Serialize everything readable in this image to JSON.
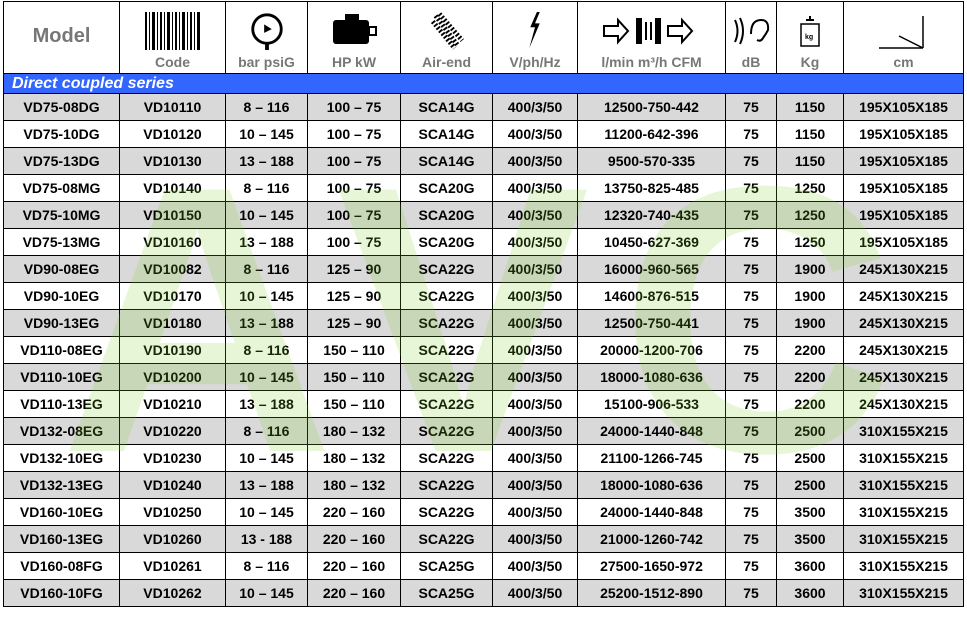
{
  "headers": {
    "model": "Model",
    "code": "Code",
    "pressure": "bar psiG",
    "power": "HP kW",
    "airend": "Air-end",
    "voltage": "V/ph/Hz",
    "flow": "l/min  m³/h  CFM",
    "noise": "dB",
    "weight": "Kg",
    "dims": "cm"
  },
  "icons": [
    "barcode-icon",
    "pressure-gauge-icon",
    "motor-icon",
    "air-end-icon",
    "lightning-icon",
    "airflow-icon",
    "ear-sound-icon",
    "weight-icon",
    "dimensions-axes-icon"
  ],
  "section": "Direct coupled series",
  "band_color": "#3366ff",
  "rows": [
    [
      "VD75-08DG",
      "VD10110",
      "8 – 116",
      "100 – 75",
      "SCA14G",
      "400/3/50",
      "12500-750-442",
      "75",
      "1150",
      "195X105X185"
    ],
    [
      "VD75-10DG",
      "VD10120",
      "10 – 145",
      "100 – 75",
      "SCA14G",
      "400/3/50",
      "11200-642-396",
      "75",
      "1150",
      "195X105X185"
    ],
    [
      "VD75-13DG",
      "VD10130",
      "13 – 188",
      "100 – 75",
      "SCA14G",
      "400/3/50",
      "9500-570-335",
      "75",
      "1150",
      "195X105X185"
    ],
    [
      "VD75-08MG",
      "VD10140",
      "8 – 116",
      "100 – 75",
      "SCA20G",
      "400/3/50",
      "13750-825-485",
      "75",
      "1250",
      "195X105X185"
    ],
    [
      "VD75-10MG",
      "VD10150",
      "10 – 145",
      "100 – 75",
      "SCA20G",
      "400/3/50",
      "12320-740-435",
      "75",
      "1250",
      "195X105X185"
    ],
    [
      "VD75-13MG",
      "VD10160",
      "13 – 188",
      "100 – 75",
      "SCA20G",
      "400/3/50",
      "10450-627-369",
      "75",
      "1250",
      "195X105X185"
    ],
    [
      "VD90-08EG",
      "VD10082",
      "8 – 116",
      "125 – 90",
      "SCA22G",
      "400/3/50",
      "16000-960-565",
      "75",
      "1900",
      "245X130X215"
    ],
    [
      "VD90-10EG",
      "VD10170",
      "10 – 145",
      "125 – 90",
      "SCA22G",
      "400/3/50",
      "14600-876-515",
      "75",
      "1900",
      "245X130X215"
    ],
    [
      "VD90-13EG",
      "VD10180",
      "13 – 188",
      "125 – 90",
      "SCA22G",
      "400/3/50",
      "12500-750-441",
      "75",
      "1900",
      "245X130X215"
    ],
    [
      "VD110-08EG",
      "VD10190",
      "8 – 116",
      "150 – 110",
      "SCA22G",
      "400/3/50",
      "20000-1200-706",
      "75",
      "2200",
      "245X130X215"
    ],
    [
      "VD110-10EG",
      "VD10200",
      "10 – 145",
      "150 – 110",
      "SCA22G",
      "400/3/50",
      "18000-1080-636",
      "75",
      "2200",
      "245X130X215"
    ],
    [
      "VD110-13EG",
      "VD10210",
      "13 – 188",
      "150 – 110",
      "SCA22G",
      "400/3/50",
      "15100-906-533",
      "75",
      "2200",
      "245X130X215"
    ],
    [
      "VD132-08EG",
      "VD10220",
      "8 – 116",
      "180 – 132",
      "SCA22G",
      "400/3/50",
      "24000-1440-848",
      "75",
      "2500",
      "310X155X215"
    ],
    [
      "VD132-10EG",
      "VD10230",
      "10 – 145",
      "180 – 132",
      "SCA22G",
      "400/3/50",
      "21100-1266-745",
      "75",
      "2500",
      "310X155X215"
    ],
    [
      "VD132-13EG",
      "VD10240",
      "13 – 188",
      "180 – 132",
      "SCA22G",
      "400/3/50",
      "18000-1080-636",
      "75",
      "2500",
      "310X155X215"
    ],
    [
      "VD160-10EG",
      "VD10250",
      "10 – 145",
      "220 – 160",
      "SCA22G",
      "400/3/50",
      "24000-1440-848",
      "75",
      "3500",
      "310X155X215"
    ],
    [
      "VD160-13EG",
      "VD10260",
      "13 - 188",
      "220 – 160",
      "SCA22G",
      "400/3/50",
      "21000-1260-742",
      "75",
      "3500",
      "310X155X215"
    ],
    [
      "VD160-08FG",
      "VD10261",
      "8 – 116",
      "220 – 160",
      "SCA25G",
      "400/3/50",
      "27500-1650-972",
      "75",
      "3600",
      "310X155X215"
    ],
    [
      "VD160-10FG",
      "VD10262",
      "10 – 145",
      "220 – 160",
      "SCA25G",
      "400/3/50",
      "25200-1512-890",
      "75",
      "3600",
      "310X155X215"
    ]
  ],
  "watermark": "AVC"
}
